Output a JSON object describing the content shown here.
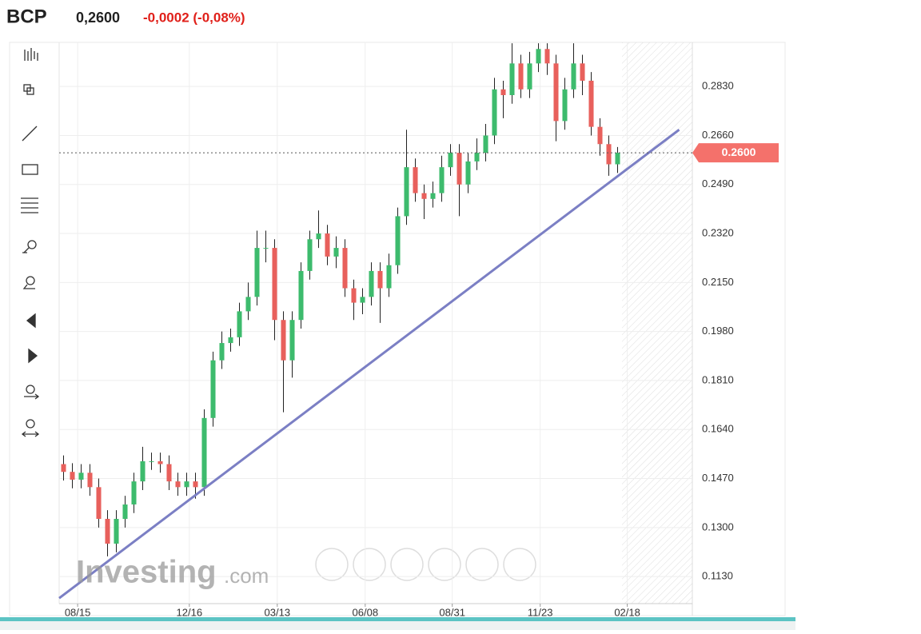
{
  "header": {
    "symbol": "BCP",
    "price": "0,2600",
    "change": "-0,0002 (-0,08%)"
  },
  "watermark": {
    "brand": "Investing",
    "suffix": ".com"
  },
  "chart_data": {
    "type": "candlestick",
    "up_color": "#3dbb6d",
    "down_color": "#e8605c",
    "wick_color": "#222222",
    "grid": true,
    "xlim": [
      -0.5,
      71.5
    ],
    "xticks": [
      {
        "value": 1.6,
        "label": "08/15"
      },
      {
        "value": 14.3,
        "label": "12/16"
      },
      {
        "value": 24.3,
        "label": "03/13"
      },
      {
        "value": 34.3,
        "label": "06/08"
      },
      {
        "value": 44.2,
        "label": "08/31"
      },
      {
        "value": 54.2,
        "label": "11/23"
      },
      {
        "value": 64.1,
        "label": "02/18"
      }
    ],
    "ylim": [
      0.1036,
      0.2983
    ],
    "yticks": [
      {
        "value": 0.283,
        "label": "0.2830"
      },
      {
        "value": 0.266,
        "label": "0.2660"
      },
      {
        "value": 0.249,
        "label": "0.2490"
      },
      {
        "value": 0.232,
        "label": "0.2320"
      },
      {
        "value": 0.215,
        "label": "0.2150"
      },
      {
        "value": 0.198,
        "label": "0.1980"
      },
      {
        "value": 0.181,
        "label": "0.1810"
      },
      {
        "value": 0.164,
        "label": "0.1640"
      },
      {
        "value": 0.147,
        "label": "0.1470"
      },
      {
        "value": 0.13,
        "label": "0.1300"
      },
      {
        "value": 0.113,
        "label": "0.1130"
      }
    ],
    "last_price": {
      "value": 0.26,
      "label": "0.2600",
      "color": "#f4716b"
    },
    "trendline": {
      "x": [
        -0.5,
        70
      ],
      "y": [
        0.1055,
        0.268
      ],
      "color": "#7b7fc4"
    },
    "series": {
      "open": [
        0.152,
        0.1493,
        0.1466,
        0.149,
        0.144,
        0.133,
        0.1244,
        0.133,
        0.138,
        0.146,
        0.153,
        0.153,
        0.152,
        0.146,
        0.144,
        0.146,
        0.144,
        0.168,
        0.188,
        0.194,
        0.196,
        0.205,
        0.21,
        0.227,
        0.227,
        0.202,
        0.188,
        0.202,
        0.219,
        0.23,
        0.232,
        0.224,
        0.227,
        0.213,
        0.208,
        0.21,
        0.219,
        0.213,
        0.221,
        0.238,
        0.255,
        0.246,
        0.244,
        0.246,
        0.255,
        0.26,
        0.249,
        0.257,
        0.26,
        0.266,
        0.282,
        0.28,
        0.291,
        0.282,
        0.291,
        0.296,
        0.291,
        0.271,
        0.282,
        0.291,
        0.285,
        0.269,
        0.263,
        0.256
      ],
      "high": [
        0.155,
        0.1523,
        0.152,
        0.152,
        0.147,
        0.136,
        0.136,
        0.141,
        0.149,
        0.158,
        0.156,
        0.156,
        0.155,
        0.149,
        0.149,
        0.149,
        0.171,
        0.191,
        0.198,
        0.199,
        0.208,
        0.215,
        0.233,
        0.233,
        0.23,
        0.205,
        0.205,
        0.222,
        0.233,
        0.24,
        0.235,
        0.231,
        0.23,
        0.216,
        0.213,
        0.222,
        0.222,
        0.225,
        0.241,
        0.268,
        0.258,
        0.249,
        0.25,
        0.259,
        0.263,
        0.263,
        0.26,
        0.265,
        0.27,
        0.286,
        0.285,
        0.298,
        0.294,
        0.295,
        0.298,
        0.298,
        0.294,
        0.286,
        0.298,
        0.294,
        0.288,
        0.272,
        0.266,
        0.262
      ],
      "low": [
        0.1463,
        0.1436,
        0.1436,
        0.141,
        0.13,
        0.12,
        0.1214,
        0.13,
        0.135,
        0.143,
        0.15,
        0.149,
        0.143,
        0.141,
        0.141,
        0.14,
        0.141,
        0.165,
        0.185,
        0.191,
        0.193,
        0.202,
        0.207,
        0.222,
        0.195,
        0.17,
        0.182,
        0.199,
        0.216,
        0.227,
        0.221,
        0.22,
        0.21,
        0.202,
        0.204,
        0.207,
        0.201,
        0.21,
        0.218,
        0.235,
        0.243,
        0.237,
        0.241,
        0.243,
        0.252,
        0.238,
        0.246,
        0.254,
        0.257,
        0.263,
        0.272,
        0.277,
        0.279,
        0.279,
        0.288,
        0.287,
        0.264,
        0.268,
        0.279,
        0.28,
        0.266,
        0.259,
        0.252,
        0.253
      ],
      "close": [
        0.1493,
        0.1466,
        0.149,
        0.144,
        0.133,
        0.1244,
        0.133,
        0.138,
        0.146,
        0.153,
        0.153,
        0.152,
        0.146,
        0.144,
        0.146,
        0.144,
        0.168,
        0.188,
        0.194,
        0.196,
        0.205,
        0.21,
        0.227,
        0.227,
        0.202,
        0.188,
        0.202,
        0.219,
        0.23,
        0.232,
        0.224,
        0.227,
        0.213,
        0.208,
        0.21,
        0.219,
        0.213,
        0.221,
        0.238,
        0.255,
        0.246,
        0.244,
        0.246,
        0.255,
        0.26,
        0.249,
        0.257,
        0.26,
        0.266,
        0.282,
        0.28,
        0.291,
        0.282,
        0.291,
        0.296,
        0.291,
        0.271,
        0.282,
        0.291,
        0.285,
        0.269,
        0.263,
        0.256,
        0.26
      ]
    }
  }
}
